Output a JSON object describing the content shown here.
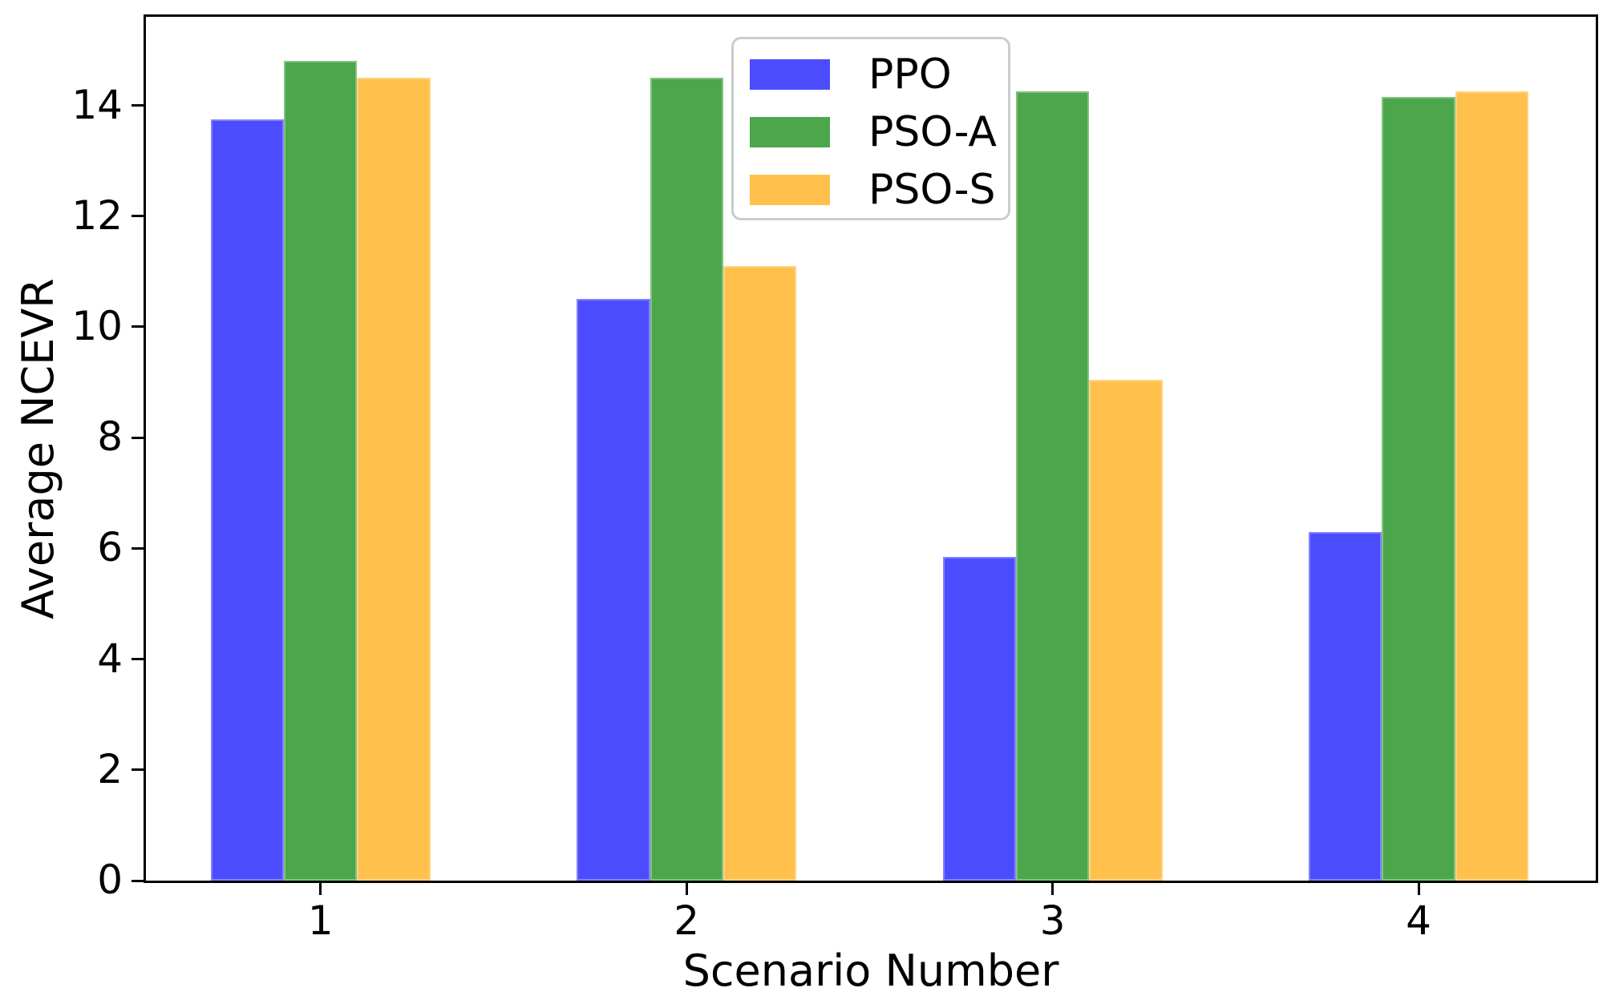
{
  "chart_data": {
    "type": "bar",
    "categories": [
      "1",
      "2",
      "3",
      "4"
    ],
    "x_positions": [
      1,
      2,
      3,
      4
    ],
    "series": [
      {
        "name": "PPO",
        "color": "#4C4CFF",
        "values": [
          13.75,
          10.5,
          5.85,
          6.3
        ]
      },
      {
        "name": "PSO-A",
        "color": "#4CA64C",
        "values": [
          14.8,
          14.5,
          14.25,
          14.15
        ]
      },
      {
        "name": "PSO-S",
        "color": "#FFC04C",
        "values": [
          14.5,
          11.1,
          9.05,
          14.25
        ]
      }
    ],
    "xlabel": "Scenario Number",
    "ylabel": "Average NCEVR",
    "xlim": [
      0.523,
      4.484
    ],
    "ylim": [
      0,
      15.6
    ],
    "yticks": [
      0,
      2,
      4,
      6,
      8,
      10,
      12,
      14
    ],
    "bar_width_units": 0.2,
    "grid": false,
    "legend": {
      "position": "upper center",
      "entries": [
        "PPO",
        "PSO-A",
        "PSO-S"
      ]
    }
  }
}
